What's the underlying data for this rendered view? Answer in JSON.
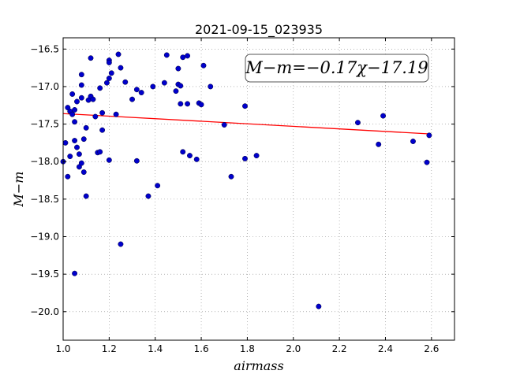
{
  "chart_data": {
    "type": "scatter",
    "title": "2021-09-15_023935",
    "xlabel": "airmass",
    "ylabel": "M−m",
    "xlim": [
      1.0,
      2.7
    ],
    "ylim": [
      -16.35,
      -20.38
    ],
    "y_inverted": true,
    "grid": true,
    "x_ticks": [
      1.0,
      1.2,
      1.4,
      1.6,
      1.8,
      2.0,
      2.2,
      2.4,
      2.6
    ],
    "x_tick_labels": [
      "1.0",
      "1.2",
      "1.4",
      "1.6",
      "1.8",
      "2.0",
      "2.2",
      "2.4",
      "2.6"
    ],
    "y_ticks": [
      -16.5,
      -17.0,
      -17.5,
      -18.0,
      -18.5,
      -19.0,
      -19.5,
      -20.0
    ],
    "y_tick_labels": [
      "−16.5",
      "−17.0",
      "−17.5",
      "−18.0",
      "−18.5",
      "−19.0",
      "−19.5",
      "−20.0"
    ],
    "annotation": "M−m=−0.17χ−17.19",
    "fit": {
      "slope": -0.17,
      "intercept": -17.19,
      "x_range": [
        1.0,
        2.59
      ]
    },
    "colors": {
      "points": "#0000cc",
      "fit": "#ff0000",
      "grid": "#888888"
    },
    "points": [
      [
        1.0,
        -18.0
      ],
      [
        1.01,
        -17.75
      ],
      [
        1.02,
        -17.28
      ],
      [
        1.02,
        -18.2
      ],
      [
        1.03,
        -17.33
      ],
      [
        1.03,
        -17.93
      ],
      [
        1.04,
        -17.37
      ],
      [
        1.04,
        -17.1
      ],
      [
        1.05,
        -17.47
      ],
      [
        1.05,
        -17.72
      ],
      [
        1.05,
        -17.31
      ],
      [
        1.06,
        -17.2
      ],
      [
        1.06,
        -17.81
      ],
      [
        1.05,
        -19.49
      ],
      [
        1.07,
        -17.9
      ],
      [
        1.07,
        -18.07
      ],
      [
        1.08,
        -16.84
      ],
      [
        1.08,
        -16.98
      ],
      [
        1.08,
        -17.15
      ],
      [
        1.08,
        -18.02
      ],
      [
        1.09,
        -18.14
      ],
      [
        1.09,
        -17.7
      ],
      [
        1.1,
        -18.46
      ],
      [
        1.1,
        -17.55
      ],
      [
        1.11,
        -17.18
      ],
      [
        1.12,
        -16.62
      ],
      [
        1.12,
        -17.13
      ],
      [
        1.13,
        -17.17
      ],
      [
        1.14,
        -17.4
      ],
      [
        1.15,
        -17.88
      ],
      [
        1.16,
        -17.87
      ],
      [
        1.16,
        -17.02
      ],
      [
        1.17,
        -17.58
      ],
      [
        1.17,
        -17.35
      ],
      [
        1.19,
        -16.95
      ],
      [
        1.2,
        -16.65
      ],
      [
        1.2,
        -16.68
      ],
      [
        1.2,
        -16.89
      ],
      [
        1.2,
        -17.98
      ],
      [
        1.21,
        -16.82
      ],
      [
        1.24,
        -16.57
      ],
      [
        1.25,
        -16.75
      ],
      [
        1.23,
        -17.37
      ],
      [
        1.25,
        -19.1
      ],
      [
        1.27,
        -16.94
      ],
      [
        1.3,
        -17.17
      ],
      [
        1.32,
        -17.04
      ],
      [
        1.32,
        -17.99
      ],
      [
        1.34,
        -17.08
      ],
      [
        1.37,
        -18.46
      ],
      [
        1.39,
        -17.0
      ],
      [
        1.41,
        -18.32
      ],
      [
        1.44,
        -16.95
      ],
      [
        1.45,
        -16.58
      ],
      [
        1.49,
        -17.06
      ],
      [
        1.5,
        -16.76
      ],
      [
        1.5,
        -16.97
      ],
      [
        1.51,
        -16.99
      ],
      [
        1.51,
        -17.23
      ],
      [
        1.52,
        -17.87
      ],
      [
        1.52,
        -16.61
      ],
      [
        1.54,
        -16.59
      ],
      [
        1.54,
        -17.23
      ],
      [
        1.55,
        -17.92
      ],
      [
        1.58,
        -17.97
      ],
      [
        1.59,
        -17.22
      ],
      [
        1.6,
        -17.24
      ],
      [
        1.61,
        -16.72
      ],
      [
        1.64,
        -17.0
      ],
      [
        1.7,
        -17.51
      ],
      [
        1.73,
        -18.2
      ],
      [
        1.79,
        -17.26
      ],
      [
        1.79,
        -17.96
      ],
      [
        1.84,
        -17.92
      ],
      [
        2.11,
        -19.93
      ],
      [
        2.28,
        -17.48
      ],
      [
        2.37,
        -17.77
      ],
      [
        2.39,
        -17.39
      ],
      [
        2.52,
        -17.73
      ],
      [
        2.58,
        -18.01
      ],
      [
        2.59,
        -17.65
      ]
    ]
  }
}
